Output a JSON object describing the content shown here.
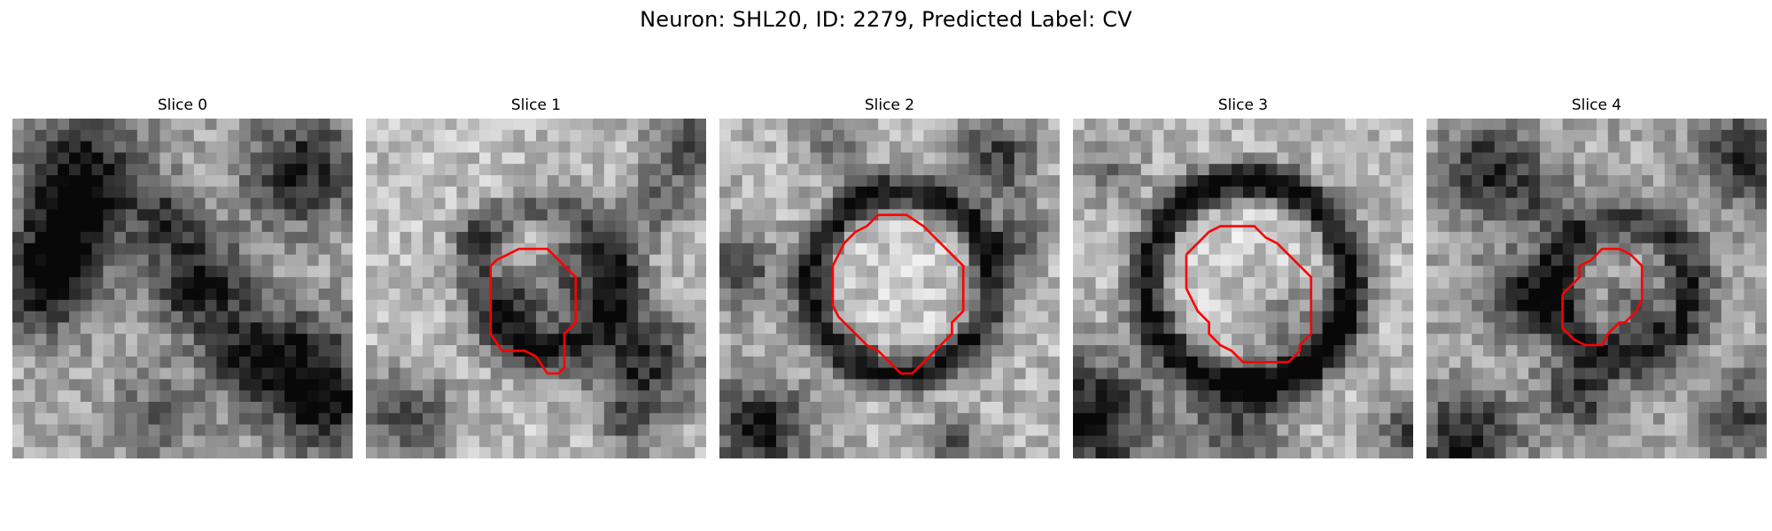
{
  "figure": {
    "title": "Neuron: SHL20, ID: 2279, Predicted Label: CV",
    "colormap": "grayscale",
    "contour_color": "#ff0000",
    "slices": [
      {
        "label": "Slice 0",
        "has_contour": false
      },
      {
        "label": "Slice 1",
        "has_contour": true
      },
      {
        "label": "Slice 2",
        "has_contour": true
      },
      {
        "label": "Slice 3",
        "has_contour": true
      },
      {
        "label": "Slice 4",
        "has_contour": true
      }
    ]
  }
}
